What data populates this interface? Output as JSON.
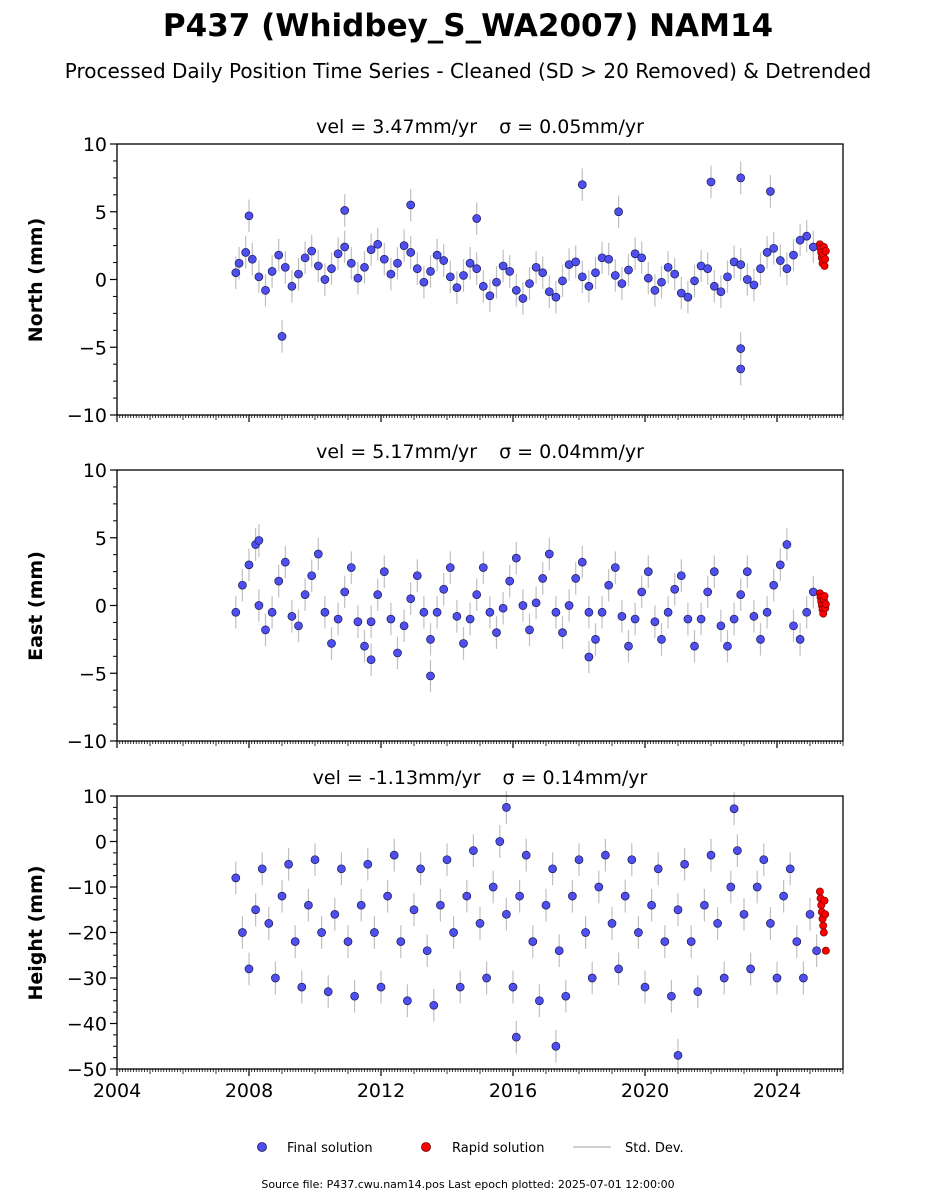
{
  "figure": {
    "title": "P437 (Whidbey_S_WA2007) NAM14",
    "subtitle": "Processed Daily Position Time Series - Cleaned (SD > 20 Removed) & Detrended",
    "footer": "Source file: P437.cwu.nam14.pos  Last epoch plotted: 2025-07-01 12:00:00"
  },
  "legend": {
    "final": "Final solution",
    "rapid": "Rapid solution",
    "std": "Std. Dev."
  },
  "colors": {
    "final_fill": "#4f4ff0",
    "final_edge": "#1a1a55",
    "rapid": "#ff0000",
    "std_dev": "#b0b0b0"
  },
  "chart_data": [
    {
      "type": "scatter",
      "ylabel": "North (mm)",
      "annotation_vel": "vel = 3.47mm/yr",
      "annotation_sigma": "σ = 0.05mm/yr",
      "ylim": [
        -10,
        10
      ],
      "yticks": [
        -10,
        -5,
        0,
        5,
        10
      ],
      "ytick_labels": [
        "−10",
        "−5",
        "0",
        "5",
        "10"
      ],
      "xlim": [
        2004,
        2026
      ],
      "xticks_shown": false,
      "grid": false,
      "series": [
        {
          "name": "Final solution",
          "x": [
            2007.6,
            2007.7,
            2007.9,
            2008.1,
            2008.3,
            2008.5,
            2008.7,
            2008.9,
            2009.1,
            2009.3,
            2009.5,
            2009.7,
            2009.9,
            2010.1,
            2010.3,
            2010.5,
            2010.7,
            2010.9,
            2011.1,
            2011.3,
            2011.5,
            2011.7,
            2011.9,
            2012.1,
            2012.3,
            2012.5,
            2012.7,
            2012.9,
            2013.1,
            2013.3,
            2013.5,
            2013.7,
            2013.9,
            2014.1,
            2014.3,
            2014.5,
            2014.7,
            2014.9,
            2015.1,
            2015.3,
            2015.5,
            2015.7,
            2015.9,
            2016.1,
            2016.3,
            2016.5,
            2016.7,
            2016.9,
            2017.1,
            2017.3,
            2017.5,
            2017.7,
            2017.9,
            2018.1,
            2018.3,
            2018.5,
            2018.7,
            2018.9,
            2019.1,
            2019.3,
            2019.5,
            2019.7,
            2019.9,
            2020.1,
            2020.3,
            2020.5,
            2020.7,
            2020.9,
            2021.1,
            2021.3,
            2021.5,
            2021.7,
            2021.9,
            2022.1,
            2022.3,
            2022.5,
            2022.7,
            2022.9,
            2023.1,
            2023.3,
            2023.5,
            2023.7,
            2023.9,
            2024.1,
            2024.3,
            2024.5,
            2024.7,
            2024.9,
            2025.1,
            2008.0,
            2009.0,
            2010.9,
            2012.9,
            2014.9,
            2018.1,
            2019.2,
            2022.0,
            2022.9,
            2022.9,
            2022.9,
            2023.8
          ],
          "y": [
            0.5,
            1.2,
            2.0,
            1.5,
            0.2,
            -0.8,
            0.6,
            1.8,
            0.9,
            -0.5,
            0.4,
            1.6,
            2.1,
            1.0,
            0.0,
            0.8,
            1.9,
            2.4,
            1.2,
            0.1,
            0.9,
            2.2,
            2.6,
            1.5,
            0.4,
            1.2,
            2.5,
            2.0,
            0.8,
            -0.2,
            0.6,
            1.8,
            1.4,
            0.2,
            -0.6,
            0.3,
            1.2,
            0.8,
            -0.5,
            -1.2,
            -0.2,
            1.0,
            0.6,
            -0.8,
            -1.4,
            -0.3,
            0.9,
            0.5,
            -0.9,
            -1.3,
            -0.1,
            1.1,
            1.3,
            0.2,
            -0.5,
            0.5,
            1.6,
            1.5,
            0.3,
            -0.3,
            0.7,
            1.9,
            1.6,
            0.1,
            -0.8,
            -0.2,
            0.9,
            0.4,
            -1.0,
            -1.3,
            -0.1,
            1.0,
            0.8,
            -0.5,
            -0.9,
            0.2,
            1.3,
            1.1,
            0.0,
            -0.4,
            0.8,
            2.0,
            2.3,
            1.4,
            0.8,
            1.8,
            2.9,
            3.2,
            2.4,
            4.7,
            -4.2,
            5.1,
            5.5,
            4.5,
            7.0,
            5.0,
            7.2,
            7.5,
            -5.1,
            -6.6,
            6.5
          ]
        },
        {
          "name": "Rapid solution",
          "x": [
            2025.3,
            2025.32,
            2025.34,
            2025.36,
            2025.38,
            2025.4,
            2025.42,
            2025.44,
            2025.46,
            2025.48
          ],
          "y": [
            2.6,
            2.3,
            2.0,
            1.6,
            1.2,
            1.8,
            2.4,
            1.0,
            1.5,
            2.1
          ]
        }
      ]
    },
    {
      "type": "scatter",
      "ylabel": "East (mm)",
      "annotation_vel": "vel = 5.17mm/yr",
      "annotation_sigma": "σ = 0.04mm/yr",
      "ylim": [
        -10,
        10
      ],
      "yticks": [
        -10,
        -5,
        0,
        5,
        10
      ],
      "ytick_labels": [
        "−10",
        "−5",
        "0",
        "5",
        "10"
      ],
      "xlim": [
        2004,
        2026
      ],
      "xticks_shown": false,
      "grid": false,
      "series": [
        {
          "name": "Final solution",
          "x": [
            2007.6,
            2007.8,
            2008.0,
            2008.2,
            2008.3,
            2008.5,
            2008.7,
            2008.9,
            2009.1,
            2009.3,
            2009.5,
            2009.7,
            2009.9,
            2010.1,
            2010.3,
            2010.5,
            2010.7,
            2010.9,
            2011.1,
            2011.3,
            2011.5,
            2011.7,
            2011.9,
            2012.1,
            2012.3,
            2012.5,
            2012.7,
            2012.9,
            2013.1,
            2013.3,
            2013.5,
            2013.7,
            2013.9,
            2014.1,
            2014.3,
            2014.5,
            2014.7,
            2014.9,
            2015.1,
            2015.3,
            2015.5,
            2015.7,
            2015.9,
            2016.1,
            2016.3,
            2016.5,
            2016.7,
            2016.9,
            2017.1,
            2017.3,
            2017.5,
            2017.7,
            2017.9,
            2018.1,
            2018.3,
            2018.5,
            2018.7,
            2018.9,
            2019.1,
            2019.3,
            2019.5,
            2019.7,
            2019.9,
            2020.1,
            2020.3,
            2020.5,
            2020.7,
            2020.9,
            2021.1,
            2021.3,
            2021.5,
            2021.7,
            2021.9,
            2022.1,
            2022.3,
            2022.5,
            2022.7,
            2022.9,
            2023.1,
            2023.3,
            2023.5,
            2023.7,
            2023.9,
            2024.1,
            2024.3,
            2024.5,
            2024.7,
            2024.9,
            2025.1,
            2008.3,
            2013.5,
            2011.7,
            2018.3
          ],
          "y": [
            -0.5,
            1.5,
            3.0,
            4.5,
            0.0,
            -1.8,
            -0.5,
            1.8,
            3.2,
            -0.8,
            -1.5,
            0.8,
            2.2,
            3.8,
            -0.5,
            -2.8,
            -1.0,
            1.0,
            2.8,
            -1.2,
            -3.0,
            -1.2,
            0.8,
            2.5,
            -1.0,
            -3.5,
            -1.5,
            0.5,
            2.2,
            -0.5,
            -2.5,
            -0.5,
            1.2,
            2.8,
            -0.8,
            -2.8,
            -1.0,
            0.8,
            2.8,
            -0.5,
            -2.0,
            -0.2,
            1.8,
            3.5,
            0.0,
            -1.8,
            0.2,
            2.0,
            3.8,
            -0.5,
            -2.0,
            0.0,
            2.0,
            3.2,
            -0.5,
            -2.5,
            -0.5,
            1.5,
            2.8,
            -0.8,
            -3.0,
            -1.0,
            1.0,
            2.5,
            -1.2,
            -2.5,
            -0.5,
            1.2,
            2.2,
            -1.0,
            -3.0,
            -1.0,
            1.0,
            2.5,
            -1.5,
            -3.0,
            -1.0,
            0.8,
            2.5,
            -0.8,
            -2.5,
            -0.5,
            1.5,
            3.0,
            4.5,
            -1.5,
            -2.5,
            -0.5,
            1.0,
            4.8,
            -5.2,
            -4.0,
            -3.8
          ]
        },
        {
          "name": "Rapid solution",
          "x": [
            2025.3,
            2025.32,
            2025.34,
            2025.36,
            2025.38,
            2025.4,
            2025.42,
            2025.44,
            2025.46,
            2025.48
          ],
          "y": [
            0.9,
            0.6,
            0.3,
            0.0,
            -0.3,
            -0.6,
            0.4,
            0.7,
            -0.2,
            0.1
          ]
        }
      ]
    },
    {
      "type": "scatter",
      "ylabel": "Height (mm)",
      "annotation_vel": "vel = -1.13mm/yr",
      "annotation_sigma": "σ = 0.14mm/yr",
      "ylim": [
        -50,
        10
      ],
      "yticks": [
        -50,
        -40,
        -30,
        -20,
        -10,
        0,
        10
      ],
      "ytick_labels": [
        "−50",
        "−40",
        "−30",
        "−20",
        "−10",
        "0",
        "10"
      ],
      "xlim": [
        2004,
        2026
      ],
      "xticks": [
        2004,
        2008,
        2012,
        2016,
        2020,
        2024
      ],
      "xtick_labels": [
        "2004",
        "2008",
        "2012",
        "2016",
        "2020",
        "2024"
      ],
      "grid": false,
      "series": [
        {
          "name": "Final solution",
          "x": [
            2007.6,
            2007.8,
            2008.0,
            2008.2,
            2008.4,
            2008.6,
            2008.8,
            2009.0,
            2009.2,
            2009.4,
            2009.6,
            2009.8,
            2010.0,
            2010.2,
            2010.4,
            2010.6,
            2010.8,
            2011.0,
            2011.2,
            2011.4,
            2011.6,
            2011.8,
            2012.0,
            2012.2,
            2012.4,
            2012.6,
            2012.8,
            2013.0,
            2013.2,
            2013.4,
            2013.6,
            2013.8,
            2014.0,
            2014.2,
            2014.4,
            2014.6,
            2014.8,
            2015.0,
            2015.2,
            2015.4,
            2015.6,
            2015.8,
            2016.0,
            2016.2,
            2016.4,
            2016.6,
            2016.8,
            2017.0,
            2017.2,
            2017.4,
            2017.6,
            2017.8,
            2018.0,
            2018.2,
            2018.4,
            2018.6,
            2018.8,
            2019.0,
            2019.2,
            2019.4,
            2019.6,
            2019.8,
            2020.0,
            2020.2,
            2020.4,
            2020.6,
            2020.8,
            2021.0,
            2021.2,
            2021.4,
            2021.6,
            2021.8,
            2022.0,
            2022.2,
            2022.4,
            2022.6,
            2022.8,
            2023.0,
            2023.2,
            2023.4,
            2023.6,
            2023.8,
            2024.0,
            2024.2,
            2024.4,
            2024.6,
            2024.8,
            2025.0,
            2025.2,
            2015.8,
            2022.7,
            2016.1,
            2021.0,
            2017.3
          ],
          "y": [
            -8,
            -20,
            -28,
            -15,
            -6,
            -18,
            -30,
            -12,
            -5,
            -22,
            -32,
            -14,
            -4,
            -20,
            -33,
            -16,
            -6,
            -22,
            -34,
            -14,
            -5,
            -20,
            -32,
            -12,
            -3,
            -22,
            -35,
            -15,
            -6,
            -24,
            -36,
            -14,
            -4,
            -20,
            -32,
            -12,
            -2,
            -18,
            -30,
            -10,
            0,
            -16,
            -32,
            -12,
            -3,
            -22,
            -35,
            -14,
            -6,
            -24,
            -34,
            -12,
            -4,
            -20,
            -30,
            -10,
            -3,
            -18,
            -28,
            -12,
            -4,
            -20,
            -32,
            -14,
            -6,
            -22,
            -34,
            -15,
            -5,
            -22,
            -33,
            -14,
            -3,
            -18,
            -30,
            -10,
            -2,
            -16,
            -28,
            -10,
            -4,
            -18,
            -30,
            -12,
            -6,
            -22,
            -30,
            -16,
            -24,
            7.5,
            7.2,
            -43,
            -47,
            -45
          ]
        },
        {
          "name": "Rapid solution",
          "x": [
            2025.3,
            2025.32,
            2025.34,
            2025.36,
            2025.38,
            2025.4,
            2025.42,
            2025.44,
            2025.46,
            2025.48
          ],
          "y": [
            -11,
            -12.5,
            -14,
            -15.5,
            -17,
            -18.5,
            -20,
            -13,
            -16,
            -24
          ]
        }
      ]
    }
  ]
}
